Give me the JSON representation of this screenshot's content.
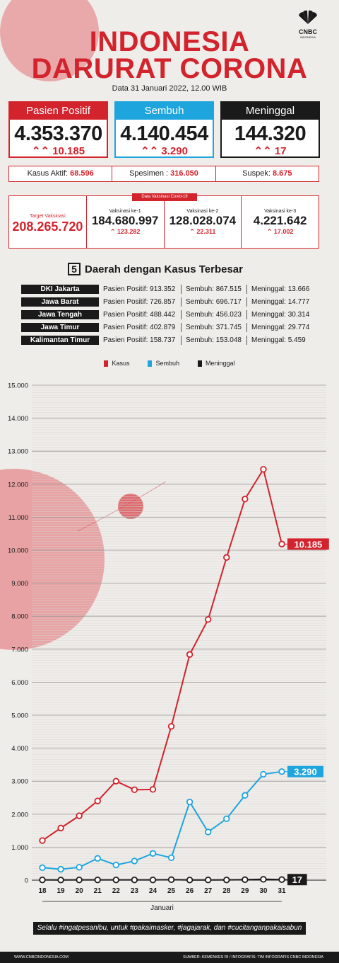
{
  "brand": {
    "name": "CNBC",
    "sub": "INDONESIA"
  },
  "title": {
    "line1": "INDONESIA",
    "line2": "DARURAT CORONA"
  },
  "date": "Data 31 Januari 2022, 12.00 WIB",
  "stats": [
    {
      "label": "Pasien Positif",
      "value": "4.353.370",
      "delta": "10.185",
      "color": "#d3232c"
    },
    {
      "label": "Sembuh",
      "value": "4.140.454",
      "delta": "3.290",
      "color": "#1ea5de"
    },
    {
      "label": "Meninggal",
      "value": "144.320",
      "delta": "17",
      "color": "#1a1a1a"
    }
  ],
  "sub_stats": [
    {
      "label": "Kasus Aktif:",
      "value": "68.596"
    },
    {
      "label": "Spesimen :",
      "value": "316.050"
    },
    {
      "label": "Suspek:",
      "value": "8.675"
    }
  ],
  "vaccination": {
    "tag": "Data Vaksinasi Covid-19",
    "target_label": "Target Vaksinasi",
    "target_value": "208.265.720",
    "doses": [
      {
        "label": "Vaksinasi ke-1",
        "value": "184.680.997",
        "delta": "123.282"
      },
      {
        "label": "Vaksinasi ke-2",
        "value": "128.028.074",
        "delta": "22.311"
      },
      {
        "label": "Vaksinasi ke-3",
        "value": "4.221.642",
        "delta": "17.002"
      }
    ]
  },
  "top_regions": {
    "number": "5",
    "title": "Daerah dengan Kasus Terbesar",
    "rows": [
      {
        "name": "DKI Jakarta",
        "positif": "Pasien Positif: 913.352",
        "sembuh": "Sembuh: 867.515",
        "meninggal": "Meninggal: 13.666"
      },
      {
        "name": "Jawa Barat",
        "positif": "Pasien Positif: 726.857",
        "sembuh": "Sembuh: 696.717",
        "meninggal": "Meninggal: 14.777"
      },
      {
        "name": "Jawa Tengah",
        "positif": "Pasien Positif: 488.442",
        "sembuh": "Sembuh: 456.023",
        "meninggal": "Meninggal: 30.314"
      },
      {
        "name": "Jawa Timur",
        "positif": "Pasien Positif: 402.879",
        "sembuh": "Sembuh: 371.745",
        "meninggal": "Meninggal: 29.774"
      },
      {
        "name": "Kalimantan Timur",
        "positif": "Pasien Positif: 158.737",
        "sembuh": "Sembuh: 153.048",
        "meninggal": "Meninggal: 5.459"
      }
    ]
  },
  "chart_data": {
    "type": "line",
    "x": [
      "18",
      "19",
      "20",
      "21",
      "22",
      "23",
      "24",
      "25",
      "26",
      "27",
      "28",
      "29",
      "30",
      "31"
    ],
    "xlabel": "Januari",
    "ylabel": "",
    "ylim": [
      0,
      15000
    ],
    "yticks": [
      "0",
      "1.000",
      "2.000",
      "3.000",
      "4.000",
      "5.000",
      "6.000",
      "7.000",
      "8.000",
      "9.000",
      "10.000",
      "11.000",
      "12.000",
      "13.000",
      "14.000",
      "15.000"
    ],
    "grid": true,
    "legend_position": "top-center",
    "series": [
      {
        "name": "Kasus",
        "color": "#d3232c",
        "values": [
          1200,
          1580,
          1950,
          2400,
          3000,
          2740,
          2750,
          4660,
          6840,
          7900,
          9780,
          11550,
          12450,
          10185
        ],
        "end_label": "10.185"
      },
      {
        "name": "Sembuh",
        "color": "#1ea5de",
        "values": [
          380,
          330,
          390,
          660,
          460,
          580,
          810,
          680,
          2370,
          1460,
          1860,
          2570,
          3210,
          3290
        ],
        "end_label": "3.290"
      },
      {
        "name": "Meninggal",
        "color": "#1a1a1a",
        "values": [
          7,
          5,
          7,
          7,
          7,
          7,
          7,
          14,
          5,
          6,
          7,
          14,
          26,
          17
        ],
        "end_label": "17"
      }
    ]
  },
  "banner": "Selalu #ingatpesanibu, untuk #pakaimasker, #jagajarak, dan #cucitanganpakaisabun",
  "footer": {
    "left": "WWW.CNBCINDONESIA.COM",
    "right": "SUMBER: KEMENKES RI / INFOGRAFIS: TIM INFOGRAFIS CNBC INDONESIA"
  }
}
